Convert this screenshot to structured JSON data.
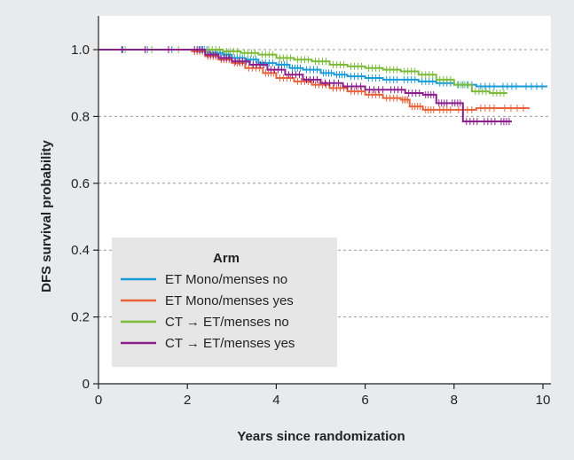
{
  "chart_data": {
    "type": "line",
    "title": "",
    "xlabel": "Years since randomization",
    "ylabel": "DFS survival probability",
    "xlim": [
      0,
      10
    ],
    "ylim": [
      0,
      1.0
    ],
    "xticks": [
      0,
      2,
      4,
      6,
      8,
      10
    ],
    "yticks": [
      0,
      0.2,
      0.4,
      0.6,
      0.8,
      1.0
    ],
    "ytick_labels": [
      "0",
      "0.2",
      "0.4",
      "0.6",
      "0.8",
      "1.0"
    ],
    "grid": "horizontal-dashed",
    "legend": {
      "title": "Arm",
      "position": "bottom-left",
      "entries": [
        "ET Mono/menses no",
        "ET Mono/menses yes",
        "CT → ET/menses no",
        "CT → ET/menses yes"
      ]
    },
    "series": [
      {
        "name": "ET Mono/menses no",
        "color": "#1a9bd7",
        "x": [
          0,
          2.2,
          2.5,
          2.8,
          3.0,
          3.3,
          3.6,
          4.0,
          4.3,
          4.6,
          5.0,
          5.3,
          5.6,
          6.0,
          6.4,
          6.8,
          7.2,
          7.6,
          8.0,
          8.5,
          9.0,
          9.5,
          10.1
        ],
        "y": [
          1.0,
          1.0,
          0.99,
          0.985,
          0.975,
          0.97,
          0.96,
          0.955,
          0.945,
          0.94,
          0.93,
          0.925,
          0.92,
          0.915,
          0.91,
          0.91,
          0.905,
          0.9,
          0.895,
          0.89,
          0.89,
          0.89,
          0.89
        ]
      },
      {
        "name": "ET Mono/menses yes",
        "color": "#e8623a",
        "x": [
          0,
          2.1,
          2.4,
          2.7,
          3.0,
          3.3,
          3.7,
          4.0,
          4.4,
          4.8,
          5.2,
          5.6,
          6.0,
          6.4,
          6.8,
          7.0,
          7.3,
          7.6,
          8.0,
          8.5,
          9.0,
          9.7
        ],
        "y": [
          1.0,
          0.995,
          0.98,
          0.97,
          0.96,
          0.945,
          0.93,
          0.915,
          0.905,
          0.895,
          0.885,
          0.875,
          0.865,
          0.855,
          0.85,
          0.83,
          0.82,
          0.82,
          0.82,
          0.825,
          0.825,
          0.825
        ]
      },
      {
        "name": "CT → ET/menses no",
        "color": "#7dbb3a",
        "x": [
          0,
          2.4,
          2.8,
          3.2,
          3.6,
          4.0,
          4.4,
          4.8,
          5.2,
          5.6,
          6.0,
          6.4,
          6.8,
          7.2,
          7.6,
          8.0,
          8.4,
          8.8,
          9.2
        ],
        "y": [
          1.0,
          1.0,
          0.995,
          0.99,
          0.985,
          0.975,
          0.97,
          0.965,
          0.955,
          0.95,
          0.945,
          0.94,
          0.935,
          0.925,
          0.91,
          0.895,
          0.875,
          0.87,
          0.87
        ]
      },
      {
        "name": "CT → ET/menses yes",
        "color": "#8b1f8b",
        "x": [
          0,
          2.1,
          2.4,
          2.7,
          3.0,
          3.4,
          3.8,
          4.2,
          4.6,
          5.0,
          5.5,
          6.0,
          6.5,
          6.9,
          7.3,
          7.6,
          7.9,
          8.2,
          8.6,
          9.0,
          9.3
        ],
        "y": [
          1.0,
          1.0,
          0.985,
          0.975,
          0.965,
          0.955,
          0.94,
          0.925,
          0.91,
          0.9,
          0.89,
          0.88,
          0.88,
          0.87,
          0.865,
          0.84,
          0.84,
          0.785,
          0.785,
          0.785,
          0.785
        ]
      }
    ]
  }
}
